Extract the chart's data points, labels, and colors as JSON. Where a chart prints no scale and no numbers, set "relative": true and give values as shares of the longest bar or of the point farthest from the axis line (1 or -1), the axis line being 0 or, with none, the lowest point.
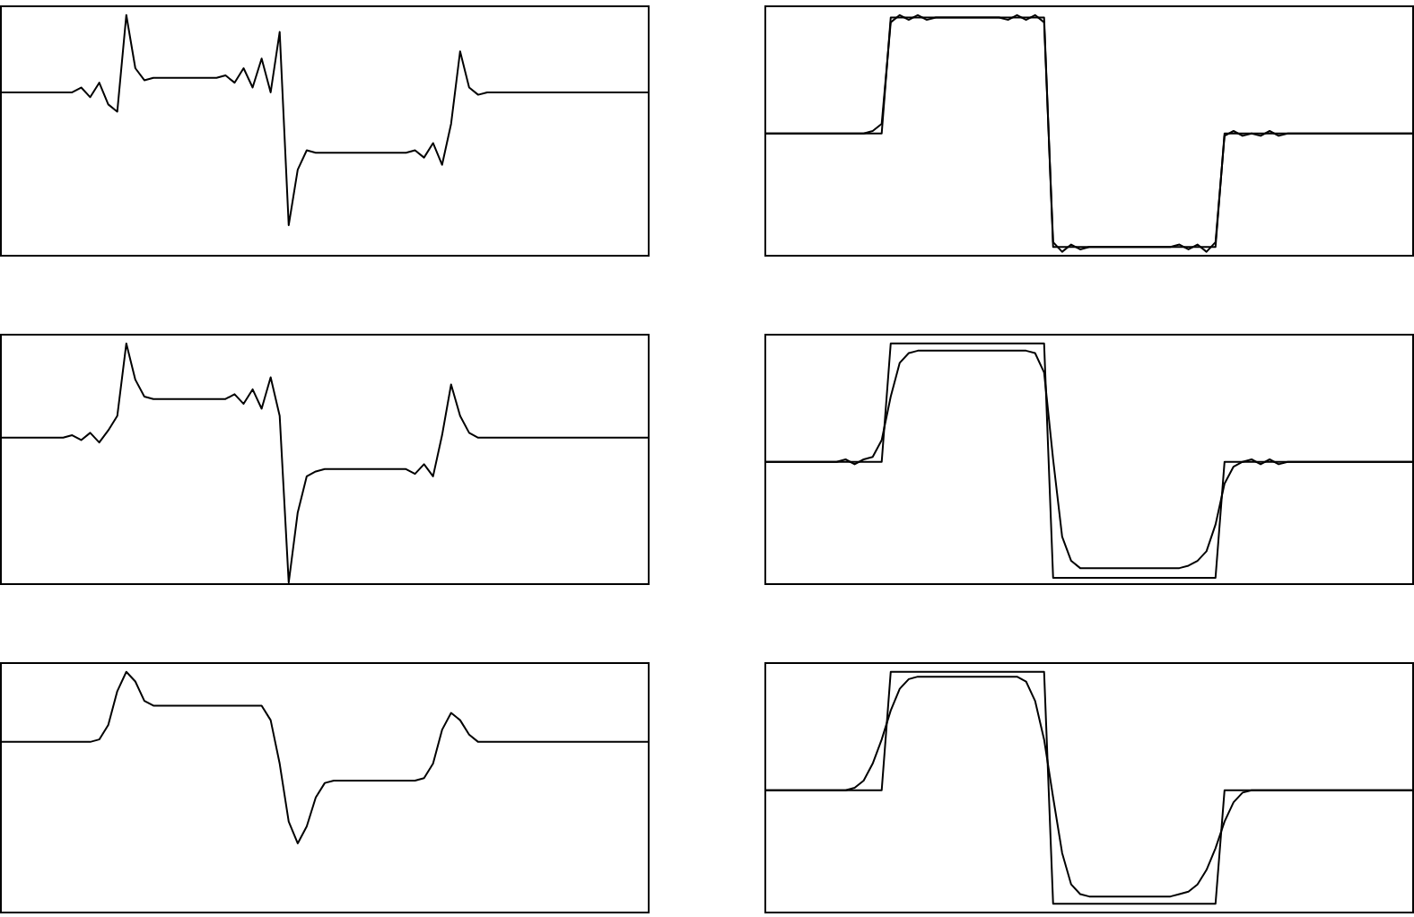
{
  "chart_data": [
    {
      "type": "line",
      "relative": true,
      "tick_labels": false,
      "legend": false,
      "marker": "none",
      "line_style": "solid",
      "categories": [
        null,
        null,
        null,
        null,
        null,
        null,
        null,
        null,
        null,
        null,
        null,
        null,
        null,
        null,
        null,
        null,
        null,
        null,
        null,
        null,
        null,
        null,
        null,
        null,
        null,
        null,
        null,
        null,
        null,
        null,
        null,
        null,
        null,
        null,
        null,
        null,
        null,
        null,
        null,
        null,
        null,
        null,
        null,
        null,
        null,
        null,
        null,
        null,
        null,
        null,
        null,
        null,
        null,
        null,
        null,
        null,
        null,
        null,
        null,
        null,
        null,
        null,
        null,
        null,
        null,
        null,
        null,
        null,
        null,
        null,
        null,
        null,
        null
      ],
      "series": [
        {
          "color": "#000000",
          "values": [
            0.68,
            0.68,
            0.68,
            0.68,
            0.68,
            0.68,
            0.68,
            0.68,
            0.68,
            0.7,
            0.66,
            0.72,
            0.63,
            0.6,
            1.0,
            0.78,
            0.73,
            0.74,
            0.74,
            0.74,
            0.74,
            0.74,
            0.74,
            0.74,
            0.74,
            0.75,
            0.72,
            0.78,
            0.7,
            0.82,
            0.68,
            0.93,
            0.13,
            0.36,
            0.44,
            0.43,
            0.43,
            0.43,
            0.43,
            0.43,
            0.43,
            0.43,
            0.43,
            0.43,
            0.43,
            0.43,
            0.44,
            0.41,
            0.47,
            0.38,
            0.55,
            0.85,
            0.7,
            0.67,
            0.68,
            0.68,
            0.68,
            0.68,
            0.68,
            0.68,
            0.68,
            0.68,
            0.68,
            0.68,
            0.68,
            0.68,
            0.68,
            0.68,
            0.68,
            0.68,
            0.68,
            0.68,
            0.68
          ]
        }
      ]
    },
    {
      "type": "line",
      "relative": true,
      "tick_labels": false,
      "legend": false,
      "marker": "none",
      "line_style": "solid",
      "categories": [
        null,
        null,
        null,
        null,
        null,
        null,
        null,
        null,
        null,
        null,
        null,
        null,
        null,
        null,
        null,
        null,
        null,
        null,
        null,
        null,
        null,
        null,
        null,
        null,
        null,
        null,
        null,
        null,
        null,
        null,
        null,
        null,
        null,
        null,
        null,
        null,
        null,
        null,
        null,
        null,
        null,
        null,
        null,
        null,
        null,
        null,
        null,
        null,
        null,
        null,
        null,
        null,
        null,
        null,
        null,
        null,
        null,
        null,
        null,
        null,
        null,
        null,
        null,
        null,
        null,
        null,
        null,
        null,
        null,
        null,
        null,
        null,
        null
      ],
      "series": [
        {
          "color": "#000000",
          "values": [
            0.51,
            0.51,
            0.51,
            0.51,
            0.51,
            0.51,
            0.51,
            0.51,
            0.51,
            0.51,
            0.51,
            0.51,
            0.51,
            0.51,
            0.99,
            0.99,
            0.99,
            0.99,
            0.99,
            0.99,
            0.99,
            0.99,
            0.99,
            0.99,
            0.99,
            0.99,
            0.99,
            0.99,
            0.99,
            0.99,
            0.99,
            0.99,
            0.04,
            0.04,
            0.04,
            0.04,
            0.04,
            0.04,
            0.04,
            0.04,
            0.04,
            0.04,
            0.04,
            0.04,
            0.04,
            0.04,
            0.04,
            0.04,
            0.04,
            0.04,
            0.04,
            0.51,
            0.51,
            0.51,
            0.51,
            0.51,
            0.51,
            0.51,
            0.51,
            0.51,
            0.51,
            0.51,
            0.51,
            0.51,
            0.51,
            0.51,
            0.51,
            0.51,
            0.51,
            0.51,
            0.51,
            0.51,
            0.51
          ]
        },
        {
          "color": "#000000",
          "values": [
            0.51,
            0.51,
            0.51,
            0.51,
            0.51,
            0.51,
            0.51,
            0.51,
            0.51,
            0.51,
            0.51,
            0.51,
            0.52,
            0.55,
            0.97,
            1.0,
            0.98,
            1.0,
            0.98,
            0.99,
            0.99,
            0.99,
            0.99,
            0.99,
            0.99,
            0.99,
            0.99,
            0.98,
            1.0,
            0.98,
            1.0,
            0.97,
            0.06,
            0.02,
            0.05,
            0.03,
            0.04,
            0.04,
            0.04,
            0.04,
            0.04,
            0.04,
            0.04,
            0.04,
            0.04,
            0.04,
            0.05,
            0.03,
            0.05,
            0.02,
            0.06,
            0.5,
            0.52,
            0.5,
            0.51,
            0.5,
            0.52,
            0.5,
            0.51,
            0.51,
            0.51,
            0.51,
            0.51,
            0.51,
            0.51,
            0.51,
            0.51,
            0.51,
            0.51,
            0.51,
            0.51,
            0.51,
            0.51
          ]
        }
      ]
    },
    {
      "type": "line",
      "relative": true,
      "tick_labels": false,
      "legend": false,
      "marker": "none",
      "line_style": "solid",
      "categories": [
        null,
        null,
        null,
        null,
        null,
        null,
        null,
        null,
        null,
        null,
        null,
        null,
        null,
        null,
        null,
        null,
        null,
        null,
        null,
        null,
        null,
        null,
        null,
        null,
        null,
        null,
        null,
        null,
        null,
        null,
        null,
        null,
        null,
        null,
        null,
        null,
        null,
        null,
        null,
        null,
        null,
        null,
        null,
        null,
        null,
        null,
        null,
        null,
        null,
        null,
        null,
        null,
        null,
        null,
        null,
        null,
        null,
        null,
        null,
        null,
        null,
        null,
        null,
        null,
        null,
        null,
        null,
        null,
        null,
        null,
        null,
        null,
        null
      ],
      "series": [
        {
          "color": "#000000",
          "values": [
            0.61,
            0.61,
            0.61,
            0.61,
            0.61,
            0.61,
            0.61,
            0.61,
            0.62,
            0.6,
            0.63,
            0.59,
            0.64,
            0.7,
            1.0,
            0.85,
            0.78,
            0.77,
            0.77,
            0.77,
            0.77,
            0.77,
            0.77,
            0.77,
            0.77,
            0.77,
            0.79,
            0.75,
            0.81,
            0.73,
            0.86,
            0.7,
            0.01,
            0.3,
            0.45,
            0.47,
            0.48,
            0.48,
            0.48,
            0.48,
            0.48,
            0.48,
            0.48,
            0.48,
            0.48,
            0.48,
            0.46,
            0.5,
            0.45,
            0.62,
            0.83,
            0.7,
            0.63,
            0.61,
            0.61,
            0.61,
            0.61,
            0.61,
            0.61,
            0.61,
            0.61,
            0.61,
            0.61,
            0.61,
            0.61,
            0.61,
            0.61,
            0.61,
            0.61,
            0.61,
            0.61,
            0.61,
            0.61
          ]
        }
      ]
    },
    {
      "type": "line",
      "relative": true,
      "tick_labels": false,
      "legend": false,
      "marker": "none",
      "line_style": "solid",
      "categories": [
        null,
        null,
        null,
        null,
        null,
        null,
        null,
        null,
        null,
        null,
        null,
        null,
        null,
        null,
        null,
        null,
        null,
        null,
        null,
        null,
        null,
        null,
        null,
        null,
        null,
        null,
        null,
        null,
        null,
        null,
        null,
        null,
        null,
        null,
        null,
        null,
        null,
        null,
        null,
        null,
        null,
        null,
        null,
        null,
        null,
        null,
        null,
        null,
        null,
        null,
        null,
        null,
        null,
        null,
        null,
        null,
        null,
        null,
        null,
        null,
        null,
        null,
        null,
        null,
        null,
        null,
        null,
        null,
        null,
        null,
        null,
        null,
        null
      ],
      "series": [
        {
          "color": "#000000",
          "values": [
            0.51,
            0.51,
            0.51,
            0.51,
            0.51,
            0.51,
            0.51,
            0.51,
            0.51,
            0.51,
            0.51,
            0.51,
            0.51,
            0.51,
            1.0,
            1.0,
            1.0,
            1.0,
            1.0,
            1.0,
            1.0,
            1.0,
            1.0,
            1.0,
            1.0,
            1.0,
            1.0,
            1.0,
            1.0,
            1.0,
            1.0,
            1.0,
            0.03,
            0.03,
            0.03,
            0.03,
            0.03,
            0.03,
            0.03,
            0.03,
            0.03,
            0.03,
            0.03,
            0.03,
            0.03,
            0.03,
            0.03,
            0.03,
            0.03,
            0.03,
            0.03,
            0.51,
            0.51,
            0.51,
            0.51,
            0.51,
            0.51,
            0.51,
            0.51,
            0.51,
            0.51,
            0.51,
            0.51,
            0.51,
            0.51,
            0.51,
            0.51,
            0.51,
            0.51,
            0.51,
            0.51,
            0.51,
            0.51
          ]
        },
        {
          "color": "#000000",
          "values": [
            0.51,
            0.51,
            0.51,
            0.51,
            0.51,
            0.51,
            0.51,
            0.51,
            0.51,
            0.52,
            0.5,
            0.52,
            0.53,
            0.6,
            0.78,
            0.92,
            0.96,
            0.97,
            0.97,
            0.97,
            0.97,
            0.97,
            0.97,
            0.97,
            0.97,
            0.97,
            0.97,
            0.97,
            0.97,
            0.97,
            0.96,
            0.88,
            0.52,
            0.2,
            0.1,
            0.07,
            0.07,
            0.07,
            0.07,
            0.07,
            0.07,
            0.07,
            0.07,
            0.07,
            0.07,
            0.07,
            0.07,
            0.08,
            0.1,
            0.14,
            0.25,
            0.42,
            0.49,
            0.51,
            0.52,
            0.5,
            0.52,
            0.5,
            0.51,
            0.51,
            0.51,
            0.51,
            0.51,
            0.51,
            0.51,
            0.51,
            0.51,
            0.51,
            0.51,
            0.51,
            0.51,
            0.51,
            0.51
          ]
        }
      ]
    },
    {
      "type": "line",
      "relative": true,
      "tick_labels": false,
      "legend": false,
      "marker": "none",
      "line_style": "solid",
      "categories": [
        null,
        null,
        null,
        null,
        null,
        null,
        null,
        null,
        null,
        null,
        null,
        null,
        null,
        null,
        null,
        null,
        null,
        null,
        null,
        null,
        null,
        null,
        null,
        null,
        null,
        null,
        null,
        null,
        null,
        null,
        null,
        null,
        null,
        null,
        null,
        null,
        null,
        null,
        null,
        null,
        null,
        null,
        null,
        null,
        null,
        null,
        null,
        null,
        null,
        null,
        null,
        null,
        null,
        null,
        null,
        null,
        null,
        null,
        null,
        null,
        null,
        null,
        null,
        null,
        null,
        null,
        null,
        null,
        null,
        null,
        null,
        null,
        null
      ],
      "series": [
        {
          "color": "#000000",
          "values": [
            0.71,
            0.71,
            0.71,
            0.71,
            0.71,
            0.71,
            0.71,
            0.71,
            0.71,
            0.71,
            0.71,
            0.72,
            0.78,
            0.92,
            1.0,
            0.96,
            0.88,
            0.86,
            0.86,
            0.86,
            0.86,
            0.86,
            0.86,
            0.86,
            0.86,
            0.86,
            0.86,
            0.86,
            0.86,
            0.86,
            0.8,
            0.62,
            0.38,
            0.29,
            0.36,
            0.48,
            0.54,
            0.55,
            0.55,
            0.55,
            0.55,
            0.55,
            0.55,
            0.55,
            0.55,
            0.55,
            0.55,
            0.56,
            0.62,
            0.76,
            0.83,
            0.8,
            0.74,
            0.71,
            0.71,
            0.71,
            0.71,
            0.71,
            0.71,
            0.71,
            0.71,
            0.71,
            0.71,
            0.71,
            0.71,
            0.71,
            0.71,
            0.71,
            0.71,
            0.71,
            0.71,
            0.71,
            0.71
          ]
        }
      ]
    },
    {
      "type": "line",
      "relative": true,
      "tick_labels": false,
      "legend": false,
      "marker": "none",
      "line_style": "solid",
      "categories": [
        null,
        null,
        null,
        null,
        null,
        null,
        null,
        null,
        null,
        null,
        null,
        null,
        null,
        null,
        null,
        null,
        null,
        null,
        null,
        null,
        null,
        null,
        null,
        null,
        null,
        null,
        null,
        null,
        null,
        null,
        null,
        null,
        null,
        null,
        null,
        null,
        null,
        null,
        null,
        null,
        null,
        null,
        null,
        null,
        null,
        null,
        null,
        null,
        null,
        null,
        null,
        null,
        null,
        null,
        null,
        null,
        null,
        null,
        null,
        null,
        null,
        null,
        null,
        null,
        null,
        null,
        null,
        null,
        null,
        null,
        null,
        null,
        null
      ],
      "series": [
        {
          "color": "#000000",
          "values": [
            0.51,
            0.51,
            0.51,
            0.51,
            0.51,
            0.51,
            0.51,
            0.51,
            0.51,
            0.51,
            0.51,
            0.51,
            0.51,
            0.51,
            1.0,
            1.0,
            1.0,
            1.0,
            1.0,
            1.0,
            1.0,
            1.0,
            1.0,
            1.0,
            1.0,
            1.0,
            1.0,
            1.0,
            1.0,
            1.0,
            1.0,
            1.0,
            0.04,
            0.04,
            0.04,
            0.04,
            0.04,
            0.04,
            0.04,
            0.04,
            0.04,
            0.04,
            0.04,
            0.04,
            0.04,
            0.04,
            0.04,
            0.04,
            0.04,
            0.04,
            0.04,
            0.51,
            0.51,
            0.51,
            0.51,
            0.51,
            0.51,
            0.51,
            0.51,
            0.51,
            0.51,
            0.51,
            0.51,
            0.51,
            0.51,
            0.51,
            0.51,
            0.51,
            0.51,
            0.51,
            0.51,
            0.51,
            0.51
          ]
        },
        {
          "color": "#000000",
          "values": [
            0.51,
            0.51,
            0.51,
            0.51,
            0.51,
            0.51,
            0.51,
            0.51,
            0.51,
            0.51,
            0.52,
            0.55,
            0.62,
            0.72,
            0.84,
            0.93,
            0.97,
            0.98,
            0.98,
            0.98,
            0.98,
            0.98,
            0.98,
            0.98,
            0.98,
            0.98,
            0.98,
            0.98,
            0.98,
            0.96,
            0.88,
            0.72,
            0.48,
            0.25,
            0.12,
            0.08,
            0.07,
            0.07,
            0.07,
            0.07,
            0.07,
            0.07,
            0.07,
            0.07,
            0.07,
            0.07,
            0.08,
            0.09,
            0.12,
            0.18,
            0.27,
            0.38,
            0.46,
            0.5,
            0.51,
            0.51,
            0.51,
            0.51,
            0.51,
            0.51,
            0.51,
            0.51,
            0.51,
            0.51,
            0.51,
            0.51,
            0.51,
            0.51,
            0.51,
            0.51,
            0.51,
            0.51,
            0.51
          ]
        }
      ]
    }
  ]
}
